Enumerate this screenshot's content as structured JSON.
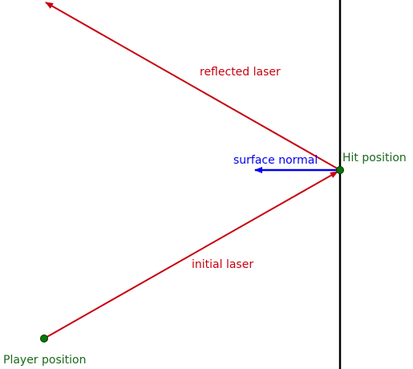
{
  "labels": {
    "reflected_laser": "reflected laser",
    "surface_normal": "surface normal",
    "hit_position": "Hit position",
    "initial_laser": "initial laser",
    "player_position": "Player position"
  },
  "colors": {
    "laser": "#c8000f",
    "normal": "#0000ee",
    "point_label": "#1a6a1a",
    "point_fill": "#007a00",
    "wall": "#000000"
  }
}
